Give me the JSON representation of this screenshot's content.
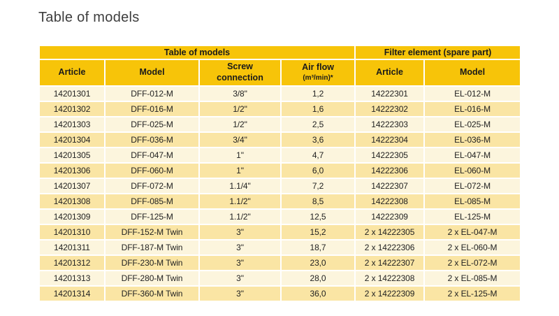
{
  "page": {
    "title": "Table of models"
  },
  "table": {
    "group_headers": [
      {
        "label": "Table of models",
        "span": 4
      },
      {
        "label": "Filter element (spare part)",
        "span": 2
      }
    ],
    "columns": [
      {
        "label": "Article"
      },
      {
        "label": "Model"
      },
      {
        "label": "Screw\nconnection"
      },
      {
        "label": "Air flow",
        "sublabel": "(m³/min)*"
      },
      {
        "label": "Article"
      },
      {
        "label": "Model"
      }
    ],
    "rows": [
      [
        "14201301",
        "DFF-012-M",
        "3/8\"",
        "1,2",
        "14222301",
        "EL-012-M"
      ],
      [
        "14201302",
        "DFF-016-M",
        "1/2\"",
        "1,6",
        "14222302",
        "EL-016-M"
      ],
      [
        "14201303",
        "DFF-025-M",
        "1/2\"",
        "2,5",
        "14222303",
        "EL-025-M"
      ],
      [
        "14201304",
        "DFF-036-M",
        "3/4\"",
        "3,6",
        "14222304",
        "EL-036-M"
      ],
      [
        "14201305",
        "DFF-047-M",
        "1\"",
        "4,7",
        "14222305",
        "EL-047-M"
      ],
      [
        "14201306",
        "DFF-060-M",
        "1\"",
        "6,0",
        "14222306",
        "EL-060-M"
      ],
      [
        "14201307",
        "DFF-072-M",
        "1.1/4\"",
        "7,2",
        "14222307",
        "EL-072-M"
      ],
      [
        "14201308",
        "DFF-085-M",
        "1.1/2\"",
        "8,5",
        "14222308",
        "EL-085-M"
      ],
      [
        "14201309",
        "DFF-125-M",
        "1.1/2\"",
        "12,5",
        "14222309",
        "EL-125-M"
      ],
      [
        "14201310",
        "DFF-152-M Twin",
        "3\"",
        "15,2",
        "2 x 14222305",
        "2 x EL-047-M"
      ],
      [
        "14201311",
        "DFF-187-M Twin",
        "3\"",
        "18,7",
        "2 x 14222306",
        "2 x EL-060-M"
      ],
      [
        "14201312",
        "DFF-230-M Twin",
        "3\"",
        "23,0",
        "2 x 14222307",
        "2 x EL-072-M"
      ],
      [
        "14201313",
        "DFF-280-M Twin",
        "3\"",
        "28,0",
        "2 x 14222308",
        "2 x EL-085-M"
      ],
      [
        "14201314",
        "DFF-360-M Twin",
        "3\"",
        "36,0",
        "2 x 14222309",
        "2 x EL-125-M"
      ]
    ],
    "colors": {
      "header_yellow": "#f7c409",
      "row_light": "#fcf5dd",
      "row_dark": "#fae5a4"
    }
  }
}
